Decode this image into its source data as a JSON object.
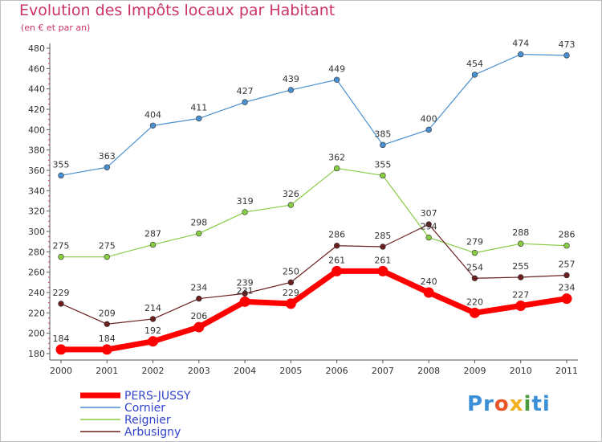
{
  "title": "Evolution des Impôts locaux par Habitant",
  "subtitle": "(en € et par an)",
  "logo": {
    "parts": [
      "Pr",
      "o",
      "x",
      "i",
      "ti"
    ]
  },
  "chart_data": {
    "type": "line",
    "title": "Evolution des Impôts locaux par Habitant",
    "subtitle": "(en € et par an)",
    "xlabel": "",
    "ylabel": "",
    "x": [
      "2000",
      "2001",
      "2002",
      "2003",
      "2004",
      "2005",
      "2006",
      "2007",
      "2008",
      "2009",
      "2010",
      "2011"
    ],
    "ylim": [
      180,
      480
    ],
    "yticks": [
      180,
      200,
      220,
      240,
      260,
      280,
      300,
      320,
      340,
      360,
      380,
      400,
      420,
      440,
      460,
      480
    ],
    "grid": false,
    "legend_position": "bottom-left",
    "series": [
      {
        "name": "Cornier",
        "color": "#4a90d0",
        "values": [
          355,
          363,
          404,
          411,
          427,
          439,
          449,
          385,
          400,
          454,
          474,
          473
        ]
      },
      {
        "name": "Reignier",
        "color": "#88cc44",
        "values": [
          275,
          275,
          287,
          298,
          319,
          326,
          362,
          355,
          294,
          279,
          288,
          286
        ]
      },
      {
        "name": "Arbusigny",
        "color": "#6b1f1f",
        "values": [
          229,
          209,
          214,
          234,
          239,
          250,
          286,
          285,
          307,
          254,
          255,
          257
        ]
      },
      {
        "name": "PERS-JUSSY",
        "color": "#ff0000",
        "values": [
          184,
          184,
          192,
          206,
          231,
          229,
          261,
          261,
          240,
          220,
          227,
          234
        ]
      }
    ],
    "legend": [
      {
        "name": "PERS-JUSSY",
        "color": "#ff0000",
        "text_color": "#3344cc"
      },
      {
        "name": "Cornier",
        "color": "#4a90d0",
        "text_color": "#3344cc"
      },
      {
        "name": "Reignier",
        "color": "#88cc44",
        "text_color": "#3344cc"
      },
      {
        "name": "Arbusigny",
        "color": "#6b1f1f",
        "text_color": "#3344cc"
      }
    ]
  }
}
